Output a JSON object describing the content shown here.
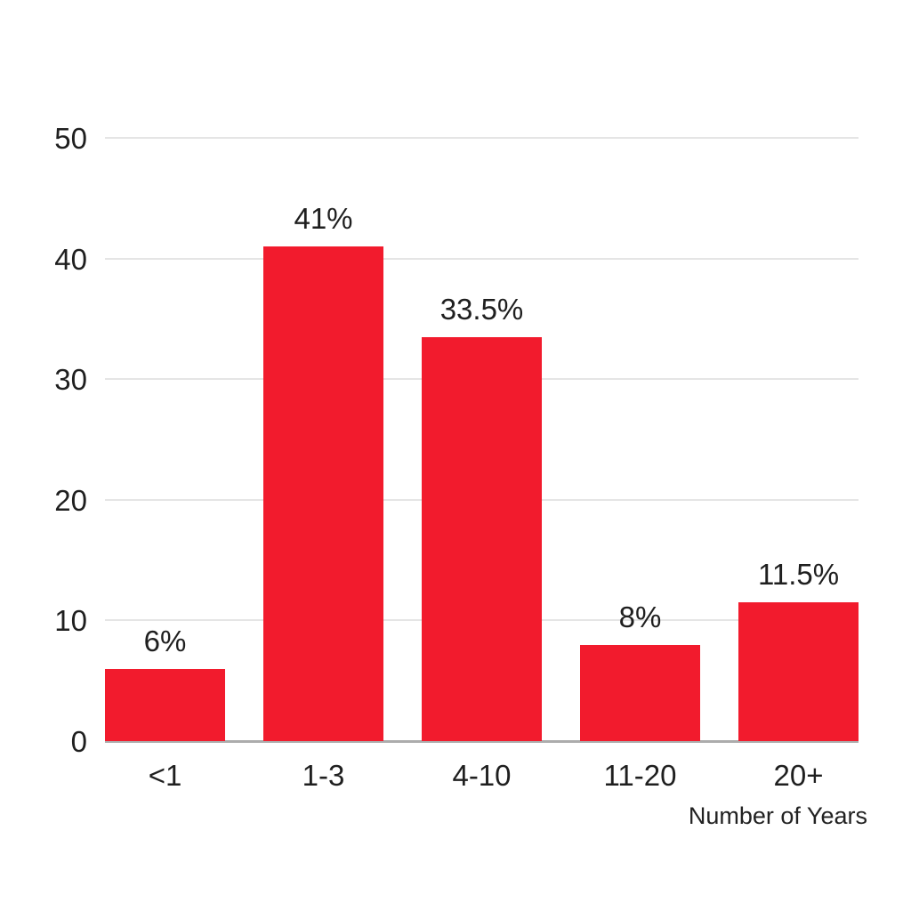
{
  "chart_data": {
    "type": "bar",
    "title": "",
    "categories": [
      "<1",
      "1-3",
      "4-10",
      "11-20",
      "20+"
    ],
    "values": [
      6,
      41,
      33.5,
      8,
      11.5
    ],
    "value_labels": [
      "6%",
      "41%",
      "33.5%",
      "8%",
      "11.5%"
    ],
    "xlabel": "Number of Years",
    "ylabel": "",
    "ylim": [
      0,
      50
    ],
    "yticks": [
      0,
      10,
      20,
      30,
      40,
      50
    ],
    "grid": true,
    "legend": false,
    "bar_color": "#f21b2d",
    "gridline_color": "#e5e5e5",
    "baseline_color": "#acacac",
    "text_color": "#1f1f1f",
    "background_color": "#ffffff"
  }
}
